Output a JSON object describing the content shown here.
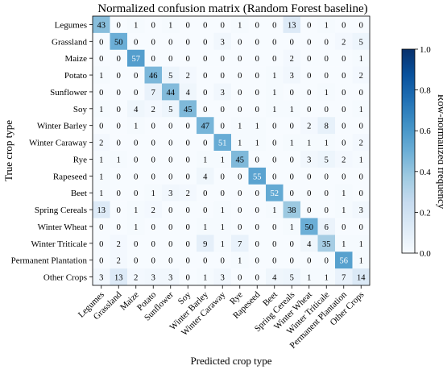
{
  "chart_data": {
    "type": "heatmap",
    "title": "Normalized confusion matrix (Random Forest baseline)",
    "xlabel": "Predicted crop type",
    "ylabel": "True crop type",
    "categories": [
      "Legumes",
      "Grassland",
      "Maize",
      "Potato",
      "Sunflower",
      "Soy",
      "Winter Barley",
      "Winter Caraway",
      "Rye",
      "Rapeseed",
      "Beet",
      "Spring Cereals",
      "Winter Wheat",
      "Winter Triticale",
      "Permanent Plantation",
      "Other Crops"
    ],
    "matrix": [
      [
        43,
        0,
        1,
        0,
        1,
        0,
        0,
        0,
        1,
        0,
        0,
        13,
        0,
        1,
        0,
        0
      ],
      [
        0,
        50,
        0,
        0,
        0,
        0,
        0,
        3,
        0,
        0,
        0,
        0,
        0,
        0,
        2,
        5
      ],
      [
        0,
        0,
        57,
        0,
        0,
        0,
        0,
        0,
        0,
        0,
        0,
        2,
        0,
        0,
        0,
        1
      ],
      [
        1,
        0,
        0,
        46,
        5,
        2,
        0,
        0,
        0,
        0,
        1,
        3,
        0,
        0,
        0,
        2
      ],
      [
        0,
        0,
        0,
        7,
        44,
        4,
        0,
        3,
        0,
        0,
        1,
        0,
        0,
        1,
        0,
        0
      ],
      [
        1,
        0,
        4,
        2,
        5,
        45,
        0,
        0,
        0,
        0,
        1,
        1,
        0,
        0,
        0,
        1
      ],
      [
        0,
        0,
        1,
        0,
        0,
        0,
        47,
        0,
        1,
        1,
        0,
        0,
        2,
        8,
        0,
        0
      ],
      [
        2,
        0,
        0,
        0,
        0,
        0,
        0,
        51,
        1,
        1,
        0,
        1,
        1,
        1,
        0,
        2
      ],
      [
        1,
        1,
        0,
        0,
        0,
        0,
        1,
        1,
        45,
        0,
        0,
        0,
        3,
        5,
        2,
        1
      ],
      [
        1,
        0,
        0,
        0,
        0,
        0,
        4,
        0,
        0,
        55,
        0,
        0,
        0,
        0,
        0,
        0
      ],
      [
        1,
        0,
        0,
        1,
        3,
        2,
        0,
        0,
        0,
        0,
        52,
        0,
        0,
        0,
        1,
        0
      ],
      [
        13,
        0,
        1,
        2,
        0,
        0,
        0,
        1,
        0,
        0,
        1,
        38,
        0,
        0,
        1,
        3
      ],
      [
        0,
        0,
        1,
        0,
        0,
        0,
        1,
        1,
        0,
        0,
        0,
        1,
        50,
        6,
        0,
        0
      ],
      [
        0,
        2,
        0,
        0,
        0,
        0,
        9,
        1,
        7,
        0,
        0,
        0,
        4,
        35,
        1,
        1
      ],
      [
        0,
        2,
        0,
        0,
        0,
        0,
        0,
        0,
        1,
        0,
        0,
        0,
        0,
        0,
        56,
        1
      ],
      [
        3,
        13,
        2,
        3,
        3,
        0,
        1,
        3,
        0,
        0,
        4,
        5,
        1,
        1,
        7,
        14
      ]
    ],
    "colorbar": {
      "label": "Row-normalized frequency",
      "range": [
        0.0,
        1.0
      ],
      "ticks": [
        "0.0",
        "0.2",
        "0.4",
        "0.6",
        "0.8",
        "1.0"
      ]
    },
    "colormap": "Blues",
    "value_scale": 100,
    "grid": false
  }
}
